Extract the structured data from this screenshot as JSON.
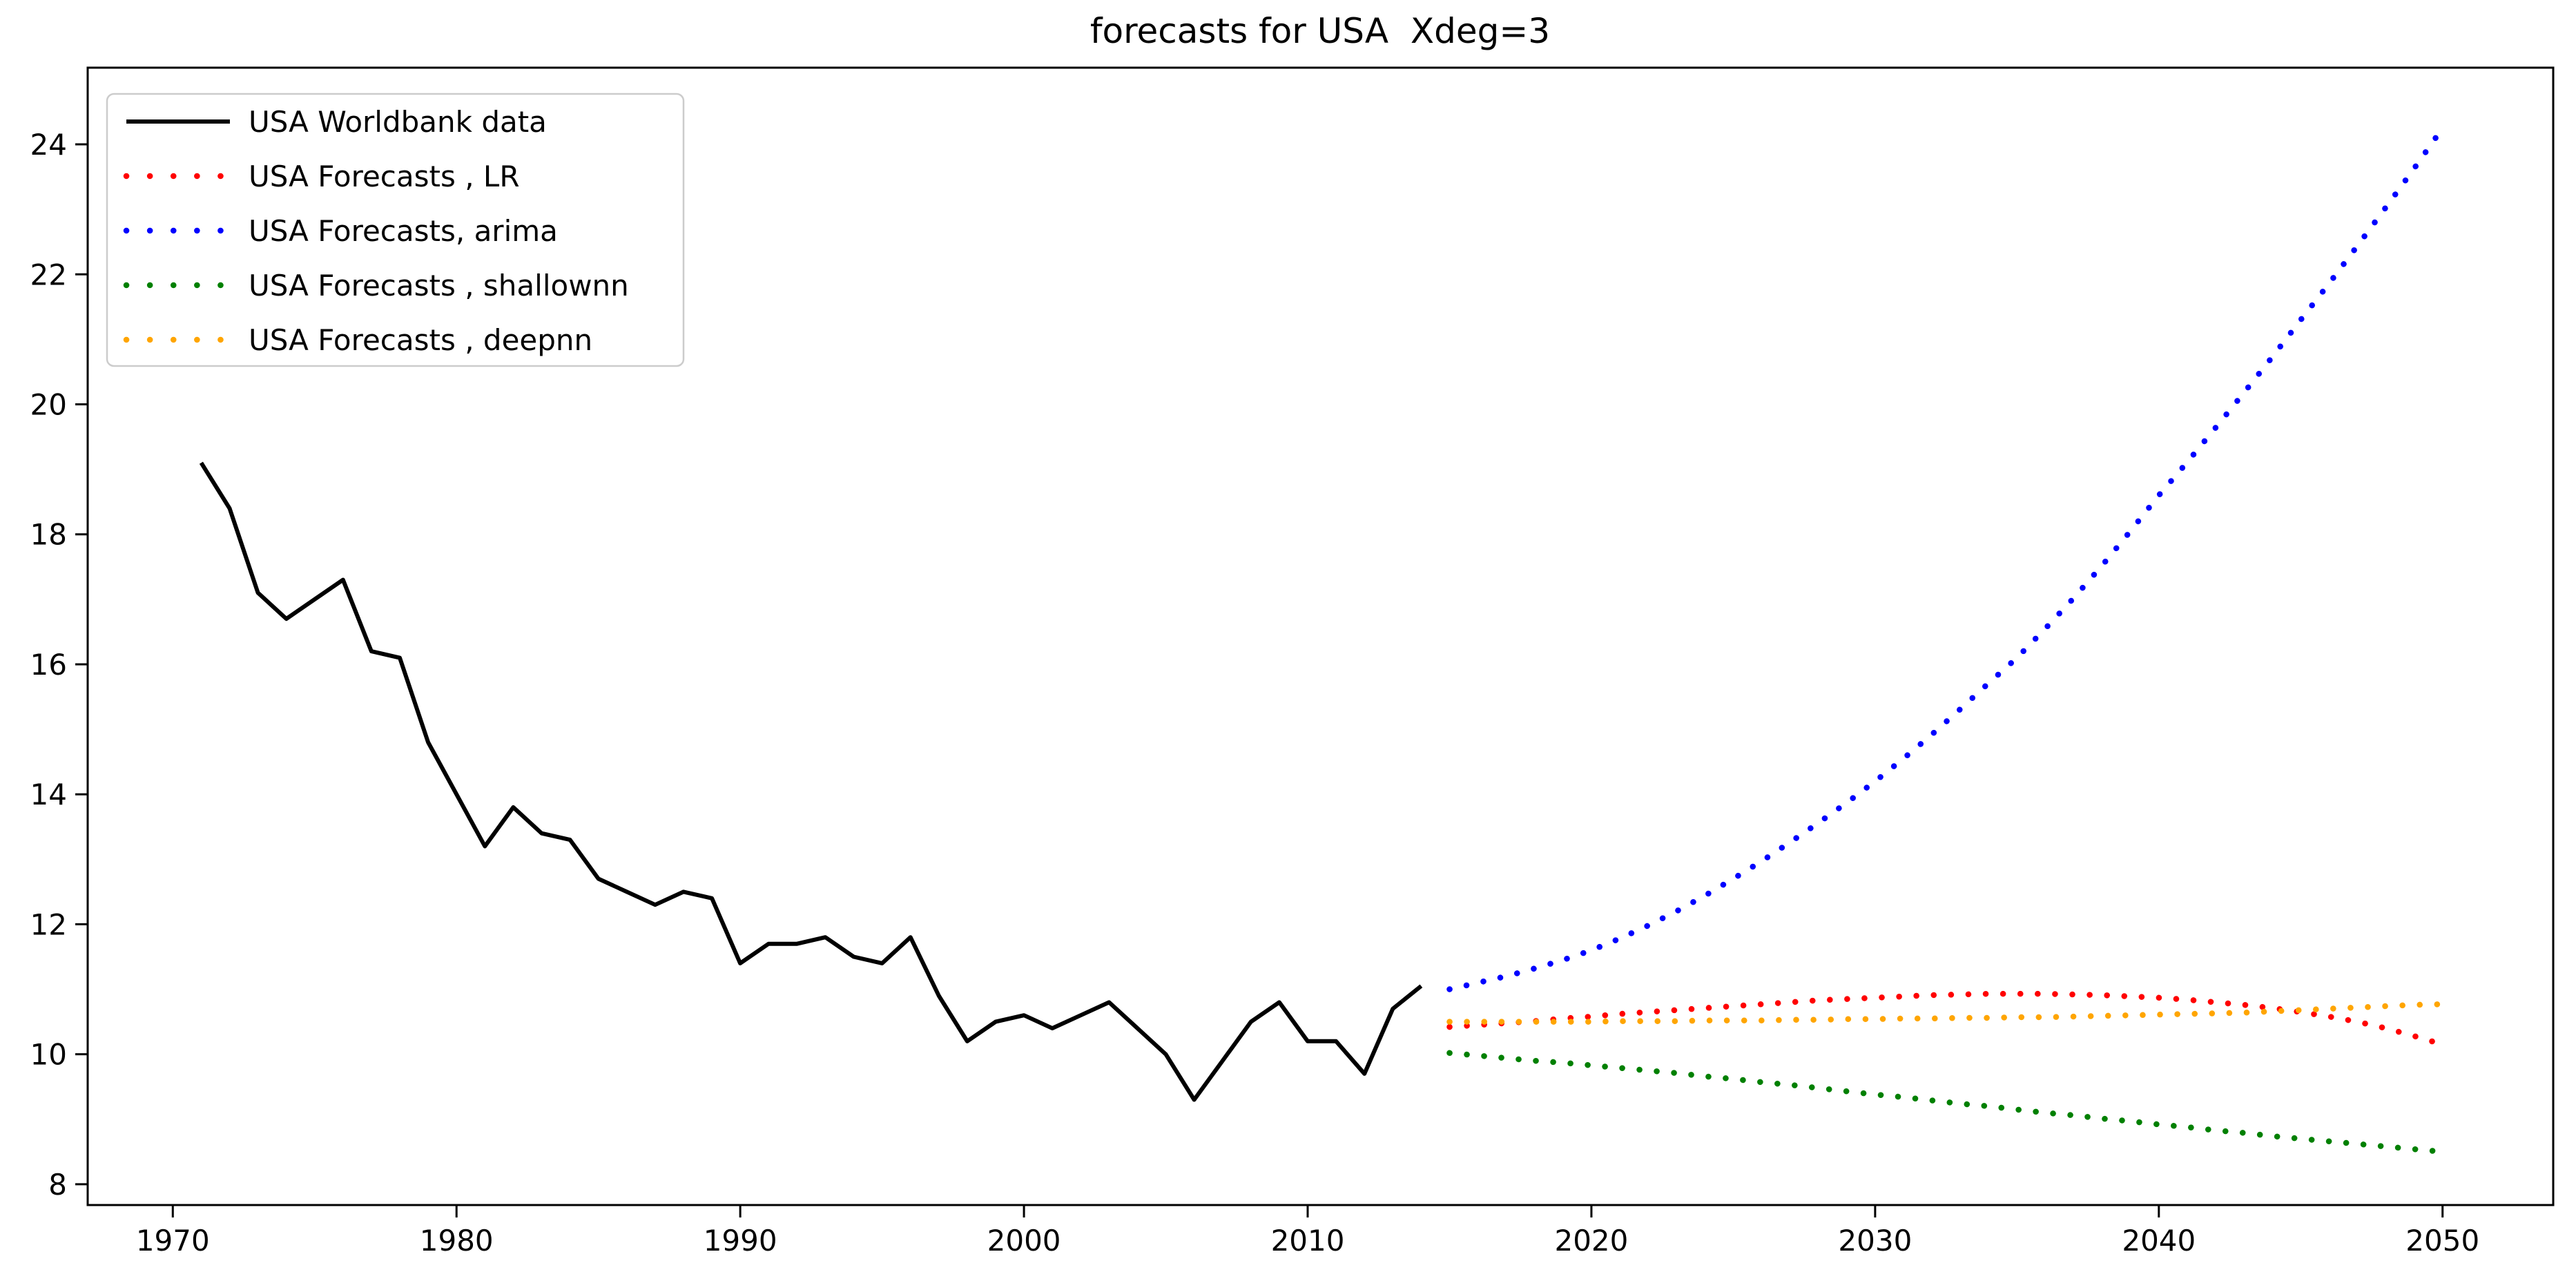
{
  "title": "forecasts for USA  Xdeg=3",
  "colors": {
    "worldbank": "#000000",
    "lr": "#ff0000",
    "arima": "#0000ff",
    "shallownn": "#008000",
    "deepnn": "#ffa500",
    "frame": "#000000",
    "legend_border": "#cccccc",
    "background": "#ffffff"
  },
  "legend": {
    "position": "upper-left",
    "entries": [
      {
        "label": "USA Worldbank data",
        "color": "#000000",
        "style": "solid"
      },
      {
        "label": "USA Forecasts , LR",
        "color": "#ff0000",
        "style": "dotted"
      },
      {
        "label": "USA Forecasts, arima",
        "color": "#0000ff",
        "style": "dotted"
      },
      {
        "label": "USA Forecasts , shallownn",
        "color": "#008000",
        "style": "dotted"
      },
      {
        "label": "USA Forecasts , deepnn",
        "color": "#ffa500",
        "style": "dotted"
      }
    ]
  },
  "chart_data": {
    "type": "line",
    "title": "forecasts for USA  Xdeg=3",
    "xlabel": "",
    "ylabel": "",
    "grid": false,
    "legend_position": "upper-left",
    "xlim": [
      1967.0,
      2053.9
    ],
    "ylim": [
      7.68,
      25.18
    ],
    "xticks": [
      1970,
      1980,
      1990,
      2000,
      2010,
      2020,
      2030,
      2040,
      2050
    ],
    "yticks": [
      8,
      10,
      12,
      14,
      16,
      18,
      20,
      22,
      24
    ],
    "series": [
      {
        "name": "USA Worldbank data",
        "color": "#000000",
        "style": "solid",
        "x": [
          1971,
          1972,
          1973,
          1974,
          1975,
          1976,
          1977,
          1978,
          1979,
          1980,
          1981,
          1982,
          1983,
          1984,
          1985,
          1986,
          1987,
          1988,
          1989,
          1990,
          1991,
          1992,
          1993,
          1994,
          1995,
          1996,
          1997,
          1998,
          1999,
          2000,
          2001,
          2002,
          2003,
          2004,
          2005,
          2006,
          2007,
          2008,
          2009,
          2010,
          2011,
          2012,
          2013,
          2014
        ],
        "values": [
          19.1,
          18.4,
          17.1,
          16.7,
          17.0,
          17.3,
          16.2,
          16.1,
          14.8,
          14.0,
          13.2,
          13.8,
          13.4,
          13.3,
          12.7,
          12.5,
          12.3,
          12.5,
          12.4,
          11.4,
          11.7,
          11.7,
          11.8,
          11.5,
          11.4,
          11.8,
          10.9,
          10.2,
          10.5,
          10.6,
          10.4,
          10.6,
          10.8,
          10.4,
          10.0,
          9.3,
          9.9,
          10.5,
          10.8,
          10.2,
          10.2,
          9.7,
          10.7,
          11.05
        ]
      },
      {
        "name": "USA Forecasts , LR",
        "color": "#ff0000",
        "style": "dotted",
        "x": [
          2015,
          2016,
          2017,
          2018,
          2019,
          2020,
          2021,
          2022,
          2023,
          2024,
          2025,
          2026,
          2027,
          2028,
          2029,
          2030,
          2031,
          2032,
          2033,
          2034,
          2035,
          2036,
          2037,
          2038,
          2039,
          2040,
          2041,
          2042,
          2043,
          2044,
          2045,
          2046,
          2047,
          2048,
          2049,
          2050
        ],
        "values": [
          10.42,
          10.45,
          10.48,
          10.51,
          10.55,
          10.58,
          10.62,
          10.65,
          10.68,
          10.71,
          10.74,
          10.77,
          10.8,
          10.83,
          10.85,
          10.87,
          10.89,
          10.91,
          10.92,
          10.93,
          10.93,
          10.93,
          10.92,
          10.91,
          10.89,
          10.87,
          10.84,
          10.8,
          10.76,
          10.71,
          10.65,
          10.58,
          10.5,
          10.4,
          10.28,
          10.15
        ]
      },
      {
        "name": "USA Forecasts, arima",
        "color": "#0000ff",
        "style": "dotted",
        "x": [
          2015,
          2016,
          2017,
          2018,
          2019,
          2020,
          2021,
          2022,
          2023,
          2024,
          2025,
          2026,
          2027,
          2028,
          2029,
          2030,
          2031,
          2032,
          2033,
          2034,
          2035,
          2036,
          2037,
          2038,
          2039,
          2040,
          2041,
          2042,
          2043,
          2044,
          2045,
          2046,
          2047,
          2048,
          2049,
          2050
        ],
        "values": [
          11.0,
          11.1,
          11.2,
          11.32,
          11.45,
          11.6,
          11.78,
          11.98,
          12.2,
          12.44,
          12.7,
          12.97,
          13.26,
          13.56,
          13.87,
          14.2,
          14.55,
          14.92,
          15.31,
          15.71,
          16.1,
          16.55,
          17.02,
          17.52,
          18.05,
          18.6,
          19.11,
          19.64,
          20.18,
          20.73,
          21.3,
          21.86,
          22.44,
          23.03,
          23.63,
          24.25
        ]
      },
      {
        "name": "USA Forecasts , shallownn",
        "color": "#008000",
        "style": "dotted",
        "x": [
          2015,
          2016,
          2017,
          2018,
          2019,
          2020,
          2021,
          2022,
          2023,
          2024,
          2025,
          2026,
          2027,
          2028,
          2029,
          2030,
          2031,
          2032,
          2033,
          2034,
          2035,
          2036,
          2037,
          2038,
          2039,
          2040,
          2041,
          2042,
          2043,
          2044,
          2045,
          2046,
          2047,
          2048,
          2049,
          2050
        ],
        "values": [
          10.02,
          9.98,
          9.94,
          9.9,
          9.87,
          9.83,
          9.79,
          9.75,
          9.71,
          9.66,
          9.62,
          9.57,
          9.53,
          9.48,
          9.43,
          9.38,
          9.34,
          9.29,
          9.24,
          9.2,
          9.15,
          9.1,
          9.06,
          9.01,
          8.97,
          8.92,
          8.88,
          8.83,
          8.79,
          8.74,
          8.7,
          8.66,
          8.62,
          8.58,
          8.54,
          8.5
        ]
      },
      {
        "name": "USA Forecasts , deepnn",
        "color": "#ffa500",
        "style": "dotted",
        "x": [
          2015,
          2016,
          2017,
          2018,
          2019,
          2020,
          2021,
          2022,
          2023,
          2024,
          2025,
          2026,
          2027,
          2028,
          2029,
          2030,
          2031,
          2032,
          2033,
          2034,
          2035,
          2036,
          2037,
          2038,
          2039,
          2040,
          2041,
          2042,
          2043,
          2044,
          2045,
          2046,
          2047,
          2048,
          2049,
          2050
        ],
        "values": [
          10.5,
          10.5,
          10.5,
          10.5,
          10.5,
          10.5,
          10.51,
          10.51,
          10.51,
          10.52,
          10.52,
          10.52,
          10.53,
          10.53,
          10.54,
          10.54,
          10.55,
          10.55,
          10.56,
          10.56,
          10.57,
          10.57,
          10.58,
          10.59,
          10.6,
          10.61,
          10.62,
          10.63,
          10.64,
          10.66,
          10.68,
          10.7,
          10.72,
          10.74,
          10.76,
          10.77
        ]
      }
    ]
  }
}
